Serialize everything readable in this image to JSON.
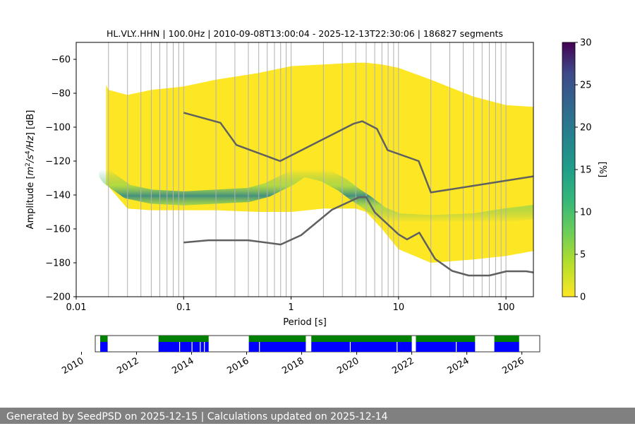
{
  "chart_data": [
    {
      "type": "heatmap",
      "title": "HL.VLY..HHN | 100.0Hz | 2010-09-08T13:00:04 - 2025-12-13T22:30:06 | 186827 segments",
      "xlabel": "Period [s]",
      "ylabel": "Amplitude [m²/s⁴/Hz] [dB]",
      "x_scale": "log",
      "xlim": [
        0.01,
        180
      ],
      "ylim": [
        -200,
        -50
      ],
      "x_ticks": [
        {
          "value": 0.01,
          "label": "0.01"
        },
        {
          "value": 0.1,
          "label": "0.1"
        },
        {
          "value": 1,
          "label": "1"
        },
        {
          "value": 10,
          "label": "10"
        },
        {
          "value": 100,
          "label": "100"
        }
      ],
      "y_ticks": [
        -60,
        -80,
        -100,
        -120,
        -140,
        -160,
        -180,
        -200
      ],
      "y_tick_labels": [
        "−60",
        "−80",
        "−100",
        "−120",
        "−140",
        "−160",
        "−180",
        "−200"
      ],
      "grid_periods": [
        0.02,
        0.03,
        0.04,
        0.05,
        0.06,
        0.07,
        0.08,
        0.09,
        0.1,
        0.2,
        0.3,
        0.4,
        0.5,
        0.6,
        0.7,
        0.8,
        0.9,
        1,
        2,
        3,
        4,
        5,
        6,
        7,
        8,
        9,
        10,
        20,
        30,
        40,
        50,
        60,
        70,
        80,
        90,
        100
      ],
      "colormap": "viridis",
      "colorbar": {
        "label": "[%]",
        "range": [
          0,
          30
        ],
        "ticks": [
          0,
          5,
          10,
          15,
          20,
          25,
          30
        ]
      },
      "density_envelope": {
        "period": [
          0.019,
          0.02,
          0.03,
          0.05,
          0.1,
          0.2,
          0.5,
          1,
          2,
          4,
          5,
          7,
          10,
          20,
          50,
          100,
          180
        ],
        "upper_db": [
          -75,
          -78,
          -81,
          -78,
          -76,
          -72,
          -68,
          -64,
          -63,
          -62,
          -62,
          -63,
          -65,
          -72,
          -82,
          -87,
          -88
        ],
        "lower_db": [
          -134,
          -135,
          -148,
          -149,
          -149,
          -149,
          -150,
          -150,
          -148,
          -148,
          -150,
          -160,
          -172,
          -180,
          -178,
          -176,
          -173
        ]
      },
      "density_mode": {
        "period": [
          0.019,
          0.02,
          0.03,
          0.05,
          0.1,
          0.2,
          0.4,
          0.6,
          1,
          1.3,
          2,
          3,
          4,
          5,
          7,
          10,
          20,
          50,
          100,
          180
        ],
        "db": [
          -128,
          -130,
          -138,
          -141,
          -142,
          -141,
          -140,
          -137,
          -130,
          -125,
          -128,
          -134,
          -140,
          -144,
          -151,
          -155,
          -156,
          -155,
          -152,
          -150
        ]
      },
      "series": [
        {
          "period": [
            0.1,
            0.22,
            0.31,
            0.79,
            3.8,
            4.6,
            6.3,
            7.9,
            15.4,
            20,
            180
          ],
          "db": [
            -91.5,
            -97.4,
            -110.5,
            -120,
            -98,
            -96.5,
            -101,
            -113.5,
            -120,
            -138.5,
            -129
          ]
        },
        {
          "period": [
            0.1,
            0.17,
            0.4,
            0.8,
            1.24,
            2.4,
            4.3,
            5,
            6,
            10,
            12,
            15.6,
            21.9,
            31.6,
            45,
            70,
            101,
            154,
            180
          ],
          "db": [
            -168,
            -166.7,
            -166.7,
            -169.2,
            -163.7,
            -148.7,
            -141.3,
            -141.3,
            -150.2,
            -163.2,
            -166.2,
            -162.2,
            -177.7,
            -184.8,
            -187.5,
            -187.5,
            -185,
            -185,
            -185.7
          ]
        }
      ]
    },
    {
      "type": "bar",
      "x_ticks": [
        "2010",
        "2012",
        "2014",
        "2016",
        "2018",
        "2020",
        "2022",
        "2024",
        "2026"
      ],
      "x_tick_years": [
        2010,
        2012,
        2014,
        2016,
        2018,
        2020,
        2022,
        2024,
        2026
      ],
      "xlim": [
        2010.5,
        2026.65
      ],
      "top_color": "#008000",
      "bottom_color": "#0000ff",
      "top_spans": [
        [
          2010.68,
          2010.95
        ],
        [
          2012.8,
          2014.62
        ],
        [
          2016.08,
          2018.15
        ],
        [
          2018.35,
          2022.0
        ],
        [
          2022.15,
          2024.3
        ],
        [
          2025.0,
          2025.9
        ]
      ],
      "bottom_spans": [
        [
          2010.68,
          2010.95
        ],
        [
          2012.8,
          2014.62
        ],
        [
          2016.08,
          2018.15
        ],
        [
          2018.35,
          2022.0
        ],
        [
          2022.15,
          2024.3
        ],
        [
          2025.0,
          2025.9
        ]
      ],
      "bottom_gaps": [
        2013.55,
        2014.0,
        2014.3,
        2014.45,
        2016.45,
        2019.75,
        2021.45,
        2023.6
      ]
    }
  ],
  "footer_text": "Generated by SeedPSD on 2025-12-15 | Calculations updated on 2025-12-14",
  "colors": {
    "line": "#606060",
    "grid": "#b0b0b0",
    "footer_bg": "#808080"
  }
}
